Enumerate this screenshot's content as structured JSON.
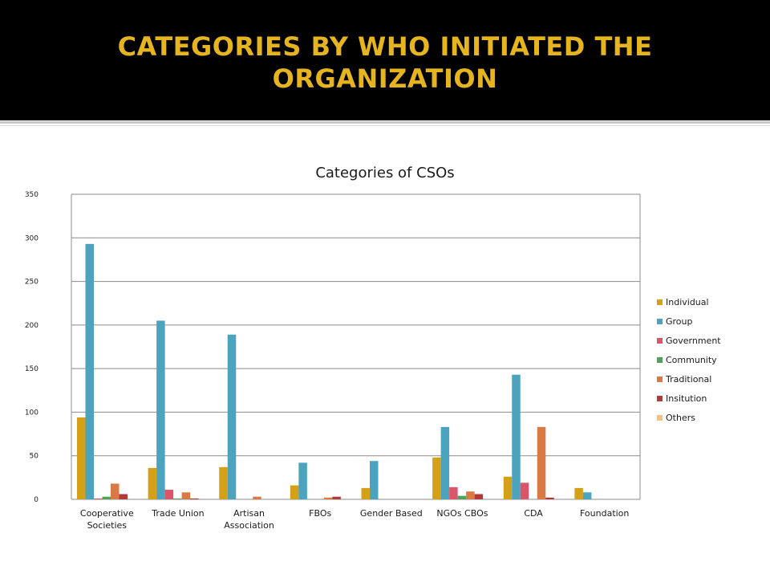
{
  "slide": {
    "title": "CATEGORIES BY WHO INITIATED THE\nORGANIZATION",
    "title_color": "#e6b41e",
    "header_background": "#000000"
  },
  "chart_data": {
    "type": "bar",
    "title": "Categories of CSOs",
    "xlabel": "",
    "ylabel": "",
    "ylim": [
      0,
      350
    ],
    "yticks": [
      0,
      50,
      100,
      150,
      200,
      250,
      300,
      350
    ],
    "grid": true,
    "legend_position": "right",
    "categories": [
      "Cooperative Societies",
      "Trade Union",
      "Artisan Association",
      "FBOs",
      "Gender Based",
      "NGOs CBOs",
      "CDA",
      "Foundation"
    ],
    "category_labels": [
      [
        "Cooperative",
        "Societies"
      ],
      [
        "Trade Union"
      ],
      [
        "Artisan",
        "Association"
      ],
      [
        "FBOs"
      ],
      [
        "Gender Based"
      ],
      [
        "NGOs CBOs"
      ],
      [
        "CDA"
      ],
      [
        "Foundation"
      ]
    ],
    "series": [
      {
        "name": "Individual",
        "color": "#d4a017",
        "values": [
          94,
          36,
          37,
          16,
          13,
          48,
          26,
          13
        ]
      },
      {
        "name": "Group",
        "color": "#4ba3bd",
        "values": [
          293,
          205,
          189,
          42,
          44,
          83,
          143,
          8
        ]
      },
      {
        "name": "Government",
        "color": "#d9556a",
        "values": [
          1,
          11,
          0,
          0,
          0,
          14,
          19,
          0
        ]
      },
      {
        "name": "Community",
        "color": "#4ca45a",
        "values": [
          3,
          1,
          0,
          0,
          0,
          4,
          0,
          0
        ]
      },
      {
        "name": "Traditional",
        "color": "#d97a45",
        "values": [
          18,
          8,
          3,
          2,
          0,
          9,
          83,
          0
        ]
      },
      {
        "name": "Insitution",
        "color": "#b03a3a",
        "values": [
          6,
          1,
          0,
          3,
          0,
          6,
          2,
          0
        ]
      },
      {
        "name": "Others",
        "color": "#f0c27a",
        "values": [
          0,
          0,
          0,
          0,
          0,
          0,
          0,
          0
        ]
      }
    ]
  }
}
